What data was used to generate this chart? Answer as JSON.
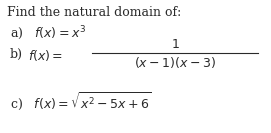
{
  "title": "Find the natural domain of:",
  "bg_color": "#ffffff",
  "text_color": "#2a2a2a",
  "title_fontsize": 9.0,
  "body_fontsize": 9.0,
  "small_fontsize": 8.5,
  "fig_width": 2.71,
  "fig_height": 1.33,
  "dpi": 100
}
